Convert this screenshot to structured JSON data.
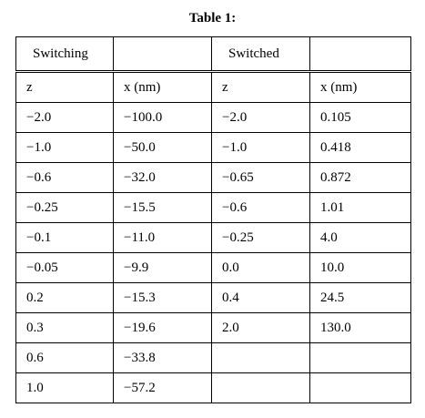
{
  "caption": "Table 1:",
  "table": {
    "group_headers": [
      "Switching",
      "",
      "Switched",
      ""
    ],
    "column_headers": [
      "z",
      "x (nm)",
      "z",
      "x (nm)"
    ],
    "rows": [
      [
        "−2.0",
        "−100.0",
        "−2.0",
        "0.105"
      ],
      [
        "−1.0",
        "−50.0",
        "−1.0",
        "0.418"
      ],
      [
        "−0.6",
        "−32.0",
        "−0.65",
        "0.872"
      ],
      [
        "−0.25",
        "−15.5",
        "−0.6",
        "1.01"
      ],
      [
        "−0.1",
        "−11.0",
        "−0.25",
        "4.0"
      ],
      [
        "−0.05",
        "−9.9",
        "0.0",
        "10.0"
      ],
      [
        "0.2",
        "−15.3",
        "0.4",
        "24.5"
      ],
      [
        "0.3",
        "−19.6",
        "2.0",
        "130.0"
      ],
      [
        "0.6",
        "−33.8",
        "",
        ""
      ],
      [
        "1.0",
        "−57.2",
        "",
        ""
      ]
    ]
  }
}
